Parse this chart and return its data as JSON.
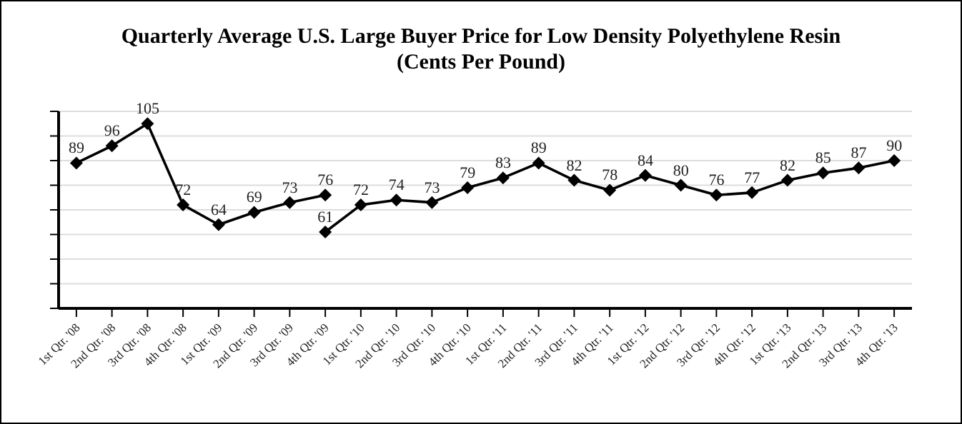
{
  "chart_data": {
    "type": "line",
    "title": "Quarterly Average U.S. Large Buyer Price for Low Density Polyethylene Resin",
    "subtitle": "(Cents Per Pound)",
    "categories": [
      "1st Qtr. '08",
      "2nd Qtr. '08",
      "3rd Qtr. '08",
      "4th Qtr. '08",
      "1st Qtr. '09",
      "2nd Qtr. '09",
      "3rd Qtr. '09",
      "4th Qtr. '09",
      "1st Qtr. '10",
      "2nd Qtr. '10",
      "3rd Qtr. '10",
      "4th Qtr. '10",
      "1st Qtr. '11",
      "2nd Qtr. '11",
      "3rd Qtr. '11",
      "4th Qtr. '11",
      "1st Qtr. '12",
      "2nd Qtr. '12",
      "3rd Qtr. '12",
      "4th Qtr. '12",
      "1st Qtr. '13",
      "2nd Qtr. '13",
      "3rd Qtr. '13",
      "4th Qtr. '13"
    ],
    "series": [
      {
        "color": "#000000",
        "values": [
          89,
          96,
          105,
          72,
          64,
          69,
          73,
          76,
          null,
          null,
          null,
          null,
          null,
          null,
          null,
          null,
          null,
          null,
          null,
          null,
          null,
          null,
          null,
          null
        ]
      },
      {
        "color": "#000000",
        "values": [
          null,
          null,
          null,
          null,
          null,
          null,
          null,
          61,
          72,
          74,
          73,
          79,
          83,
          89,
          82,
          78,
          84,
          80,
          76,
          77,
          82,
          85,
          87,
          90
        ]
      }
    ],
    "ylim": [
      30,
      110
    ],
    "yticks": [
      {
        "value": 30,
        "label": null
      },
      {
        "value": 40,
        "label": null
      },
      {
        "value": 50,
        "label": null
      },
      {
        "value": 60,
        "label": null
      },
      {
        "value": 70,
        "label": null
      },
      {
        "value": 80,
        "label": null
      },
      {
        "value": 90,
        "label": null
      },
      {
        "value": 100,
        "label": null
      },
      {
        "value": 110,
        "label": null
      }
    ],
    "tick_labels": "x",
    "grid": "y",
    "marker": "diamond",
    "line_style": "solid",
    "data_labels": true,
    "legend": false
  }
}
